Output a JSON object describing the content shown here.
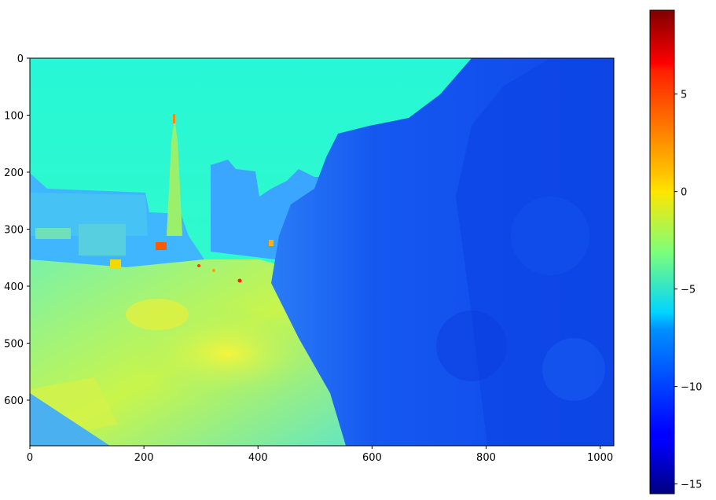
{
  "chart_data": {
    "type": "heatmap",
    "title": "",
    "xlabel": "",
    "ylabel": "",
    "xlim": [
      0,
      1024
    ],
    "ylim": [
      680,
      0
    ],
    "xticks": [
      0,
      200,
      400,
      600,
      800,
      1000
    ],
    "yticks": [
      0,
      100,
      200,
      300,
      400,
      500,
      600
    ],
    "colormap": "jet",
    "colorbar": {
      "vmin": -15.5,
      "vmax": 9.3,
      "ticks": [
        5,
        0,
        -5,
        -10,
        -15
      ],
      "tick_labels": [
        "5",
        "0",
        "−5",
        "−10",
        "−15"
      ]
    },
    "image_description_values": {
      "sky_value": -6,
      "foliage_value": -11,
      "street_value": -3,
      "tower_lights_value": 1
    },
    "colors": {
      "sky": "#2ffbd0",
      "foliage": "#1453f0",
      "foliage_dark": "#0a2fd8",
      "street": "#b8f250",
      "building": "#3aa8ff"
    }
  }
}
